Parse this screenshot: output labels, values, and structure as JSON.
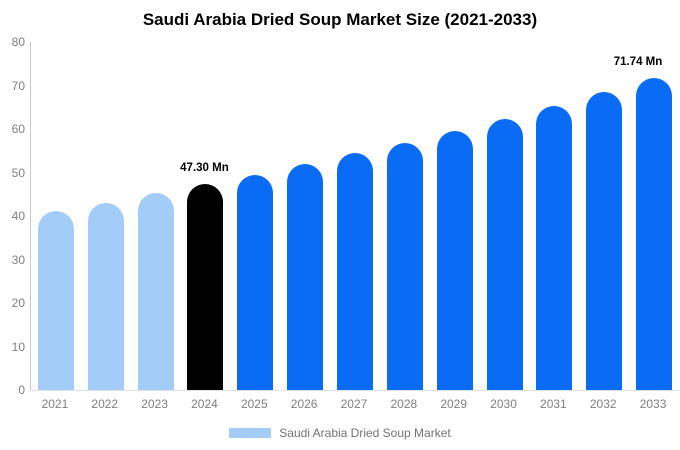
{
  "chart_data": {
    "type": "bar",
    "title": "Saudi Arabia Dried Soup Market Size (2021-2033)",
    "categories": [
      "2021",
      "2022",
      "2023",
      "2024",
      "2025",
      "2026",
      "2027",
      "2028",
      "2029",
      "2030",
      "2031",
      "2032",
      "2033"
    ],
    "values": [
      41.2,
      43.1,
      45.2,
      47.3,
      49.5,
      51.9,
      54.4,
      56.9,
      59.6,
      62.4,
      65.4,
      68.5,
      71.74
    ],
    "bar_colors": [
      "#A4CCF9",
      "#A4CCF9",
      "#A4CCF9",
      "#000000",
      "#0A6CF5",
      "#0A6CF5",
      "#0A6CF5",
      "#0A6CF5",
      "#0A6CF5",
      "#0A6CF5",
      "#0A6CF5",
      "#0A6CF5",
      "#0A6CF5"
    ],
    "data_labels": [
      {
        "category": "2024",
        "text": "47.30 Mn"
      },
      {
        "category": "2033",
        "text": "71.74 Mn"
      }
    ],
    "xlabel": "",
    "ylabel": "",
    "ylim": [
      0,
      80
    ],
    "yticks": [
      0,
      10,
      20,
      30,
      40,
      50,
      60,
      70,
      80
    ],
    "grid": false,
    "legend": {
      "label": "Saudi Arabia Dried Soup Market",
      "swatch_color": "#A4CCF9",
      "position": "bottom"
    }
  },
  "colors": {
    "historical_bar": "#A4CCF9",
    "highlight_bar": "#000000",
    "forecast_bar": "#0A6CF5",
    "axis_text": "#808080",
    "axis_line": "#c9c9c9",
    "baseline": "#e3e3e3",
    "title_text": "#000000",
    "legend_text": "#737373"
  }
}
